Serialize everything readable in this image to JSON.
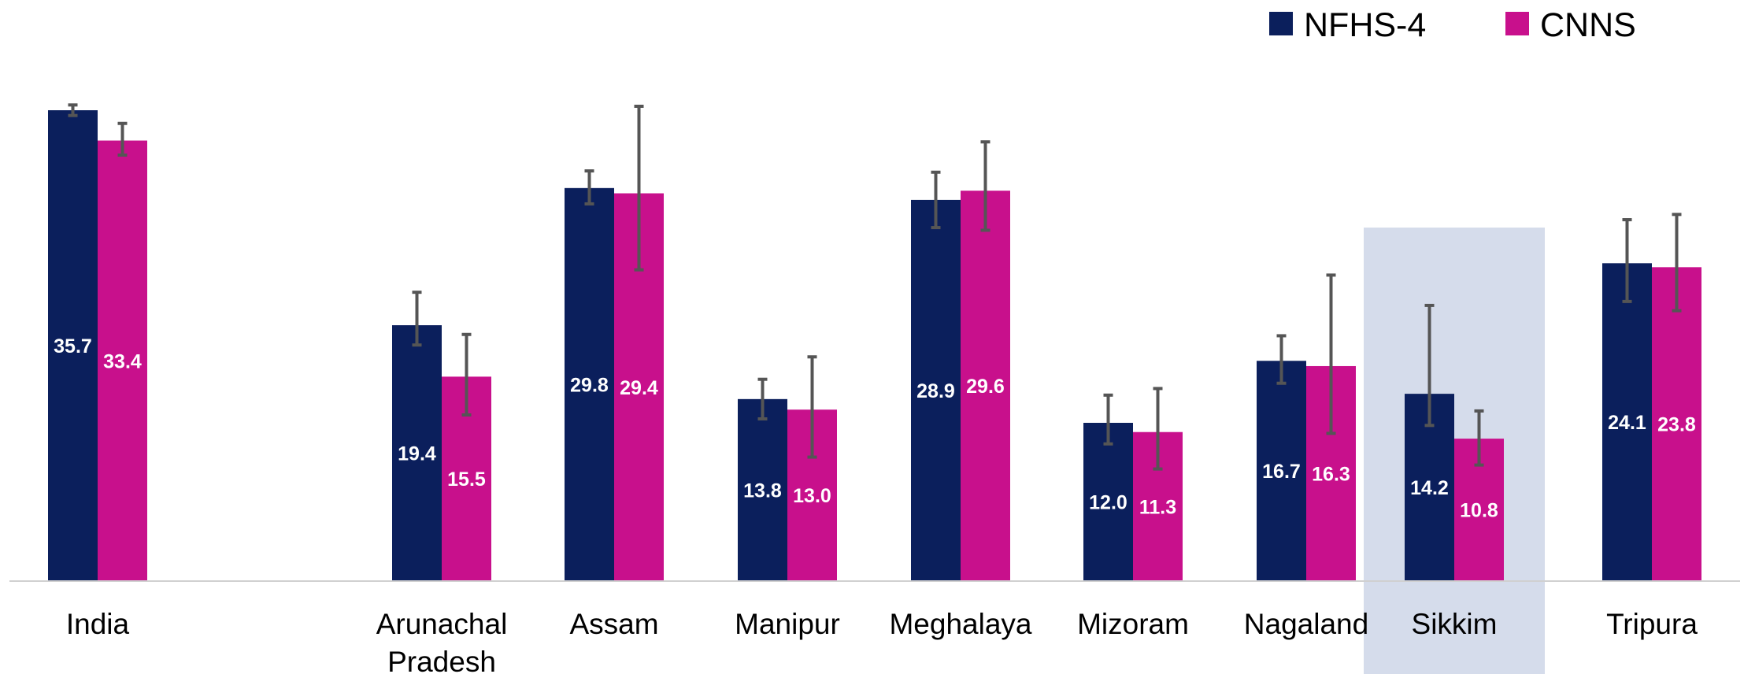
{
  "chart_data": {
    "type": "bar",
    "categories": [
      "India",
      "Arunachal Pradesh",
      "Assam",
      "Manipur",
      "Meghalaya",
      "Mizoram",
      "Nagaland",
      "Sikkim",
      "Tripura"
    ],
    "highlighted_category": "Sikkim",
    "series": [
      {
        "name": "NFHS-4",
        "color": "#0B1F5C",
        "values": [
          35.7,
          19.4,
          29.8,
          13.8,
          28.9,
          12.0,
          16.7,
          14.2,
          24.1
        ],
        "labels": [
          "35.7",
          "19.4",
          "29.8",
          "13.8",
          "28.9",
          "12.0",
          "16.7",
          "14.2",
          "24.1"
        ],
        "error_low": [
          35.3,
          17.9,
          28.6,
          12.3,
          26.8,
          10.4,
          15.0,
          11.8,
          21.2
        ],
        "error_high": [
          36.1,
          21.9,
          31.1,
          15.3,
          31.0,
          14.1,
          18.6,
          20.9,
          27.4
        ]
      },
      {
        "name": "CNNS",
        "color": "#C8108C",
        "values": [
          33.4,
          15.5,
          29.4,
          13.0,
          29.6,
          11.3,
          16.3,
          10.8,
          23.8
        ],
        "labels": [
          "33.4",
          "15.5",
          "29.4",
          "13.0",
          "29.6",
          "11.3",
          "16.3",
          "10.8",
          "23.8"
        ],
        "error_low": [
          32.3,
          12.6,
          23.6,
          9.4,
          26.6,
          8.5,
          11.2,
          8.8,
          20.5
        ],
        "error_high": [
          34.7,
          18.7,
          36.0,
          17.0,
          33.3,
          14.6,
          23.2,
          12.9,
          27.8
        ]
      }
    ],
    "ylim": [
      0,
      37
    ],
    "legend": "top-right",
    "grid": false
  }
}
